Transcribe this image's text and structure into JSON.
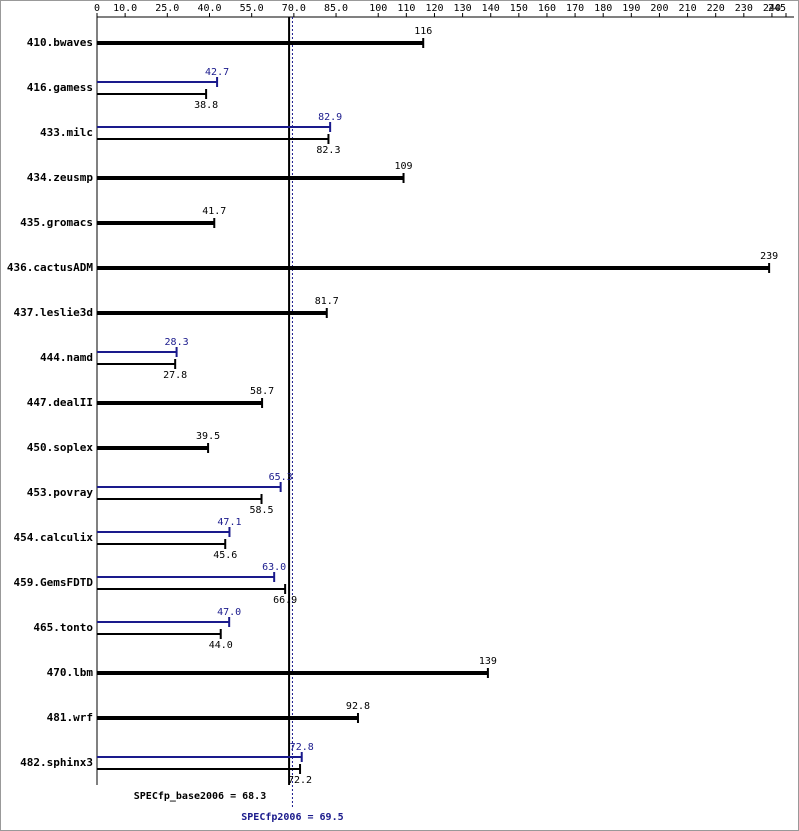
{
  "chart_data": {
    "type": "bar",
    "orientation": "horizontal",
    "categories": [
      "410.bwaves",
      "416.gamess",
      "433.milc",
      "434.zeusmp",
      "435.gromacs",
      "436.cactusADM",
      "437.leslie3d",
      "444.namd",
      "447.dealII",
      "450.soplex",
      "453.povray",
      "454.calculix",
      "459.GemsFDTD",
      "465.tonto",
      "470.lbm",
      "481.wrf",
      "482.sphinx3"
    ],
    "series": [
      {
        "color": "#000000",
        "values": [
          116,
          38.8,
          82.3,
          109,
          41.7,
          239,
          81.7,
          27.8,
          58.7,
          39.5,
          58.5,
          45.6,
          66.9,
          44.0,
          139,
          92.8,
          72.2
        ],
        "value_labels": [
          "116",
          "38.8",
          "82.3",
          "109",
          "41.7",
          "239",
          "81.7",
          "27.8",
          "58.7",
          "39.5",
          "58.5",
          "45.6",
          "66.9",
          "44.0",
          "139",
          "92.8",
          "72.2"
        ]
      },
      {
        "color": "#1a1a8c",
        "values": [
          null,
          42.7,
          82.9,
          null,
          null,
          null,
          null,
          28.3,
          null,
          null,
          65.3,
          47.1,
          63.0,
          47.0,
          null,
          null,
          72.8
        ],
        "value_labels": [
          null,
          "42.7",
          "82.9",
          null,
          null,
          null,
          null,
          "28.3",
          null,
          null,
          "65.3",
          "47.1",
          "63.0",
          "47.0",
          null,
          null,
          "72.8"
        ]
      }
    ],
    "reference_lines": [
      {
        "value": 68.3,
        "label": "SPECfp_base2006 = 68.3",
        "color": "#000000",
        "style": "solid"
      },
      {
        "value": 69.5,
        "label": "SPECfp2006 = 69.5",
        "color": "#1a1a8c",
        "style": "dotted"
      }
    ],
    "xlim": [
      0,
      245
    ],
    "xticks": [
      0,
      {
        "value": 10,
        "label": "10.0"
      },
      {
        "value": 25,
        "label": "25.0"
      },
      {
        "value": 40,
        "label": "40.0"
      },
      {
        "value": 55,
        "label": "55.0"
      },
      {
        "value": 70,
        "label": "70.0"
      },
      {
        "value": 85,
        "label": "85.0"
      },
      100,
      110,
      120,
      130,
      140,
      150,
      160,
      170,
      180,
      190,
      200,
      210,
      220,
      230,
      240,
      245
    ]
  }
}
